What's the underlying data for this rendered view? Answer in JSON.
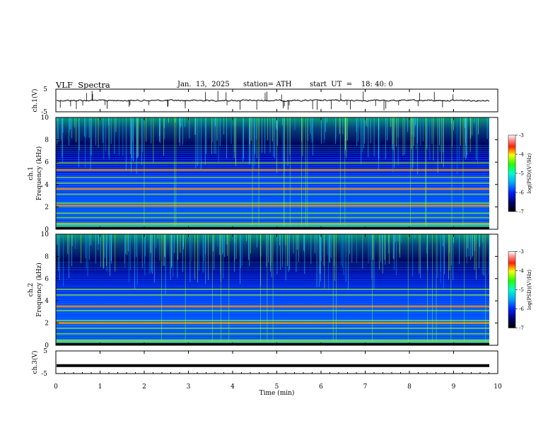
{
  "header": {
    "title": "VLF  Spectra",
    "date": "Jan.  13,  2025",
    "station": "station= ATH",
    "start": "start  UT  =    18: 40: 0"
  },
  "chart_data": {
    "type": "heatmap",
    "x": {
      "label": "Time  (min)",
      "range": [
        0,
        10
      ],
      "ticks": [
        "0",
        "1",
        "2",
        "3",
        "4",
        "5",
        "6",
        "7",
        "8",
        "9",
        "10"
      ]
    },
    "panels": [
      {
        "name": "ch.1(V)",
        "type": "line",
        "ylim": [
          -5,
          5
        ],
        "yticks": [
          "5",
          "-5"
        ],
        "baseline": 0
      },
      {
        "name": "ch.1",
        "type": "heatmap",
        "ylabel": "Frequency  (kHz)",
        "ylim": [
          0,
          10
        ],
        "yticks": [
          "0",
          "2",
          "4",
          "6",
          "8",
          "10"
        ],
        "bands_khz": [
          0.5,
          1.0,
          1.4,
          2.1,
          2.3,
          3.1,
          3.6,
          4.1,
          4.6,
          5.3,
          5.9
        ],
        "colorbar": {
          "label": "log(PSD)(V²/Hz)",
          "range": [
            -7,
            -3
          ],
          "ticks": [
            "-3",
            "-4",
            "-5",
            "-6",
            "-7"
          ]
        }
      },
      {
        "name": "ch.2",
        "type": "heatmap",
        "ylabel": "Frequency  (kHz)",
        "ylim": [
          0,
          10
        ],
        "yticks": [
          "0",
          "2",
          "4",
          "6",
          "8",
          "10"
        ],
        "bands_khz": [
          0.4,
          1.0,
          1.5,
          2.0,
          2.2,
          3.1,
          3.5,
          4.5,
          5.0
        ],
        "colorbar": {
          "label": "log(PSD)(V²/Hz)",
          "range": [
            -7,
            -3
          ],
          "ticks": [
            "-3",
            "-4",
            "-5",
            "-6",
            "-7"
          ]
        }
      },
      {
        "name": "ch.3(V)",
        "type": "line",
        "ylim": [
          -5,
          5
        ],
        "yticks": [
          "5",
          "-5"
        ],
        "level": -1.5
      }
    ],
    "data_end_min": 9.8
  }
}
